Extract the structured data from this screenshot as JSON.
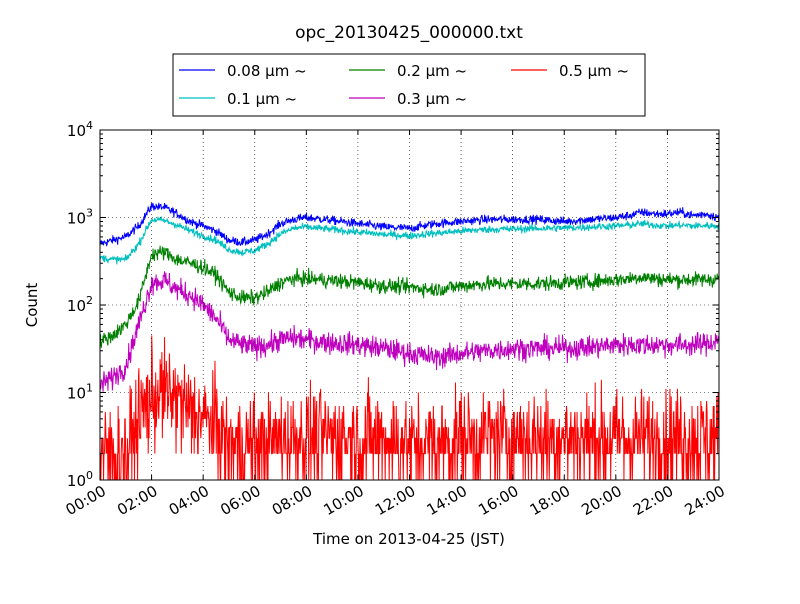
{
  "chart_data": {
    "type": "line",
    "title": "opc_20130425_000000.txt",
    "xlabel": "Time on 2013-04-25 (JST)",
    "ylabel": "Count",
    "y_scale": "log",
    "x_range": [
      "2013-04-25 00:00",
      "2013-04-26 00:00"
    ],
    "ylim": [
      1,
      10000
    ],
    "x_tick_labels": [
      "00:00",
      "02:00",
      "04:00",
      "06:00",
      "08:00",
      "10:00",
      "12:00",
      "14:00",
      "16:00",
      "18:00",
      "20:00",
      "22:00",
      "24:00"
    ],
    "y_ticks": [
      {
        "base": "10",
        "exp": "0"
      },
      {
        "base": "10",
        "exp": "1"
      },
      {
        "base": "10",
        "exp": "2"
      },
      {
        "base": "10",
        "exp": "3"
      },
      {
        "base": "10",
        "exp": "4"
      }
    ],
    "grid": true,
    "legend_position": "top-center, above plot",
    "times_hours": [
      0,
      0.5,
      1,
      1.5,
      2,
      2.5,
      3,
      3.5,
      4,
      4.5,
      5,
      5.5,
      6,
      6.5,
      7,
      7.5,
      8,
      9,
      10,
      11,
      12,
      13,
      14,
      15,
      16,
      17,
      18,
      19,
      20,
      20.5,
      21,
      21.5,
      22,
      22.5,
      23,
      23.5,
      24
    ],
    "series": [
      {
        "name": "0.08 μm ~",
        "color": "#0000ff",
        "noise": 0.035,
        "values": [
          500,
          550,
          600,
          800,
          1350,
          1300,
          1100,
          900,
          800,
          700,
          550,
          520,
          550,
          650,
          850,
          950,
          1000,
          930,
          850,
          780,
          750,
          850,
          900,
          950,
          950,
          950,
          900,
          950,
          1000,
          1050,
          1150,
          1100,
          1100,
          1150,
          1050,
          1100,
          1000
        ]
      },
      {
        "name": "0.1 μm ~",
        "color": "#00bfbf",
        "noise": 0.03,
        "values": [
          350,
          330,
          330,
          500,
          950,
          920,
          820,
          700,
          620,
          550,
          430,
          400,
          420,
          500,
          650,
          750,
          780,
          730,
          680,
          640,
          620,
          660,
          700,
          730,
          740,
          750,
          760,
          780,
          800,
          820,
          850,
          820,
          800,
          820,
          800,
          810,
          800
        ]
      },
      {
        "name": "0.2 μm ~",
        "color": "#008000",
        "noise": 0.06,
        "values": [
          38,
          45,
          60,
          110,
          380,
          400,
          330,
          300,
          270,
          220,
          140,
          120,
          120,
          140,
          180,
          200,
          200,
          190,
          180,
          165,
          160,
          150,
          165,
          175,
          175,
          175,
          180,
          185,
          195,
          200,
          210,
          200,
          195,
          195,
          195,
          195,
          200
        ]
      },
      {
        "name": "0.3 μm ~",
        "color": "#bf00bf",
        "noise": 0.09,
        "values": [
          12,
          15,
          20,
          60,
          180,
          190,
          150,
          130,
          100,
          70,
          40,
          35,
          33,
          35,
          40,
          42,
          40,
          37,
          35,
          32,
          28,
          25,
          28,
          30,
          32,
          32,
          32,
          33,
          35,
          35,
          35,
          35,
          35,
          35,
          35,
          36,
          40
        ]
      },
      {
        "name": "0.5 μm ~",
        "color": "#ff0000",
        "noise": 0.3,
        "values": [
          2,
          2,
          2,
          5,
          9,
          10,
          8,
          6,
          5,
          4,
          2.5,
          2.5,
          2.5,
          2.5,
          3,
          3,
          3,
          3,
          3,
          3,
          2.5,
          2.5,
          3,
          3,
          3,
          3,
          3,
          3,
          3,
          3,
          3,
          3,
          3,
          3,
          3,
          3,
          3
        ]
      }
    ]
  }
}
